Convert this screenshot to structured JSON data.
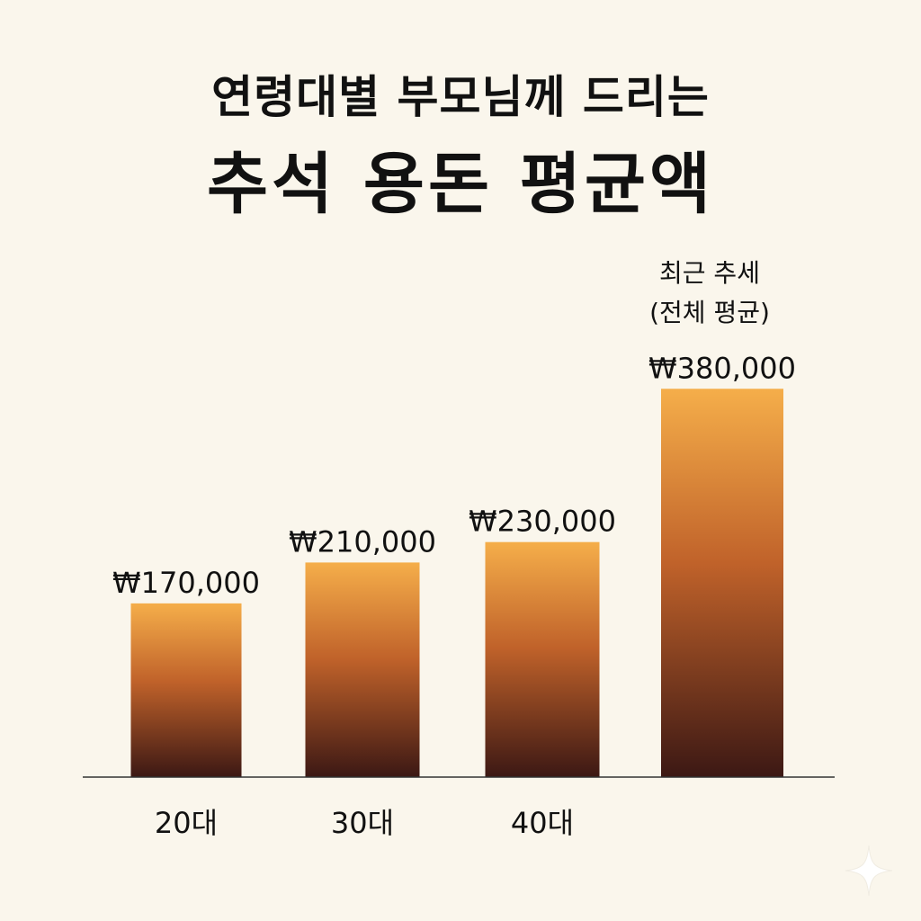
{
  "title": "연령대별 부모님께 드리는",
  "subtitle": "추석 용돈 평균액",
  "colors": {
    "background": "#faf6ec",
    "bar_top": "#f5ae4a",
    "bar_mid": "#c0622a",
    "bar_bottom": "#3c1814",
    "axis": "#333333",
    "text": "#111111"
  },
  "chart_data": {
    "type": "bar",
    "categories": [
      "20대",
      "30대",
      "40대",
      ""
    ],
    "values": [
      170000,
      210000,
      230000,
      380000
    ],
    "value_labels": [
      "₩170,000",
      "₩210,000",
      "₩230,000",
      "₩380,000"
    ],
    "annotations": [
      {
        "category_index": 3,
        "lines": [
          "최근 추세",
          "(전체 평균)"
        ]
      }
    ],
    "title": "연령대별 부모님께 드리는",
    "subtitle": "추석 용돈 평균액",
    "xlabel": "",
    "ylabel": "",
    "ylim": [
      0,
      470000
    ],
    "grid": false,
    "legend": "none"
  },
  "decoration": {
    "sparkle_icon": "sparkle-icon"
  }
}
